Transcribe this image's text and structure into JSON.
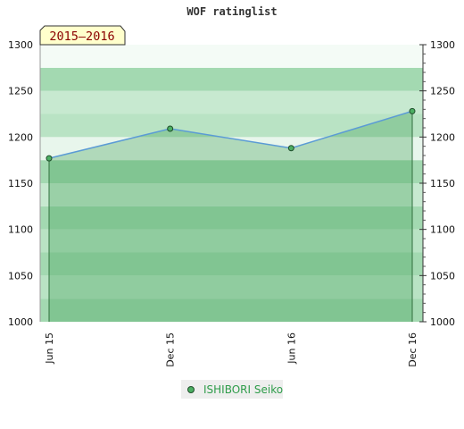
{
  "chart_data": {
    "type": "area",
    "title": "WOF ratinglist",
    "badge": "2015–2016",
    "categories": [
      "Jun 15",
      "Dec 15",
      "Jun 16",
      "Dec 16"
    ],
    "series": [
      {
        "name": "ISHIBORI Seiko",
        "values": [
          1177,
          1209,
          1188,
          1228
        ]
      }
    ],
    "ylim": [
      1000,
      1300
    ],
    "yticks": [
      "1000",
      "1050",
      "1100",
      "1150",
      "1200",
      "1250",
      "1300"
    ],
    "xlabel": "",
    "ylabel": "",
    "grid": true,
    "legend": "bottom-center",
    "colors": {
      "line": "#5b9bd5",
      "marker": "#4caf63",
      "marker_stroke": "#1f4d2b",
      "badge_bg": "#ffffcc",
      "legend_bg": "#eeeeee"
    },
    "band_colors": [
      "#a3d9b1",
      "#b9e3c4",
      "#c7e9d0",
      "#e8f6ec",
      "#f4fbf6"
    ]
  }
}
